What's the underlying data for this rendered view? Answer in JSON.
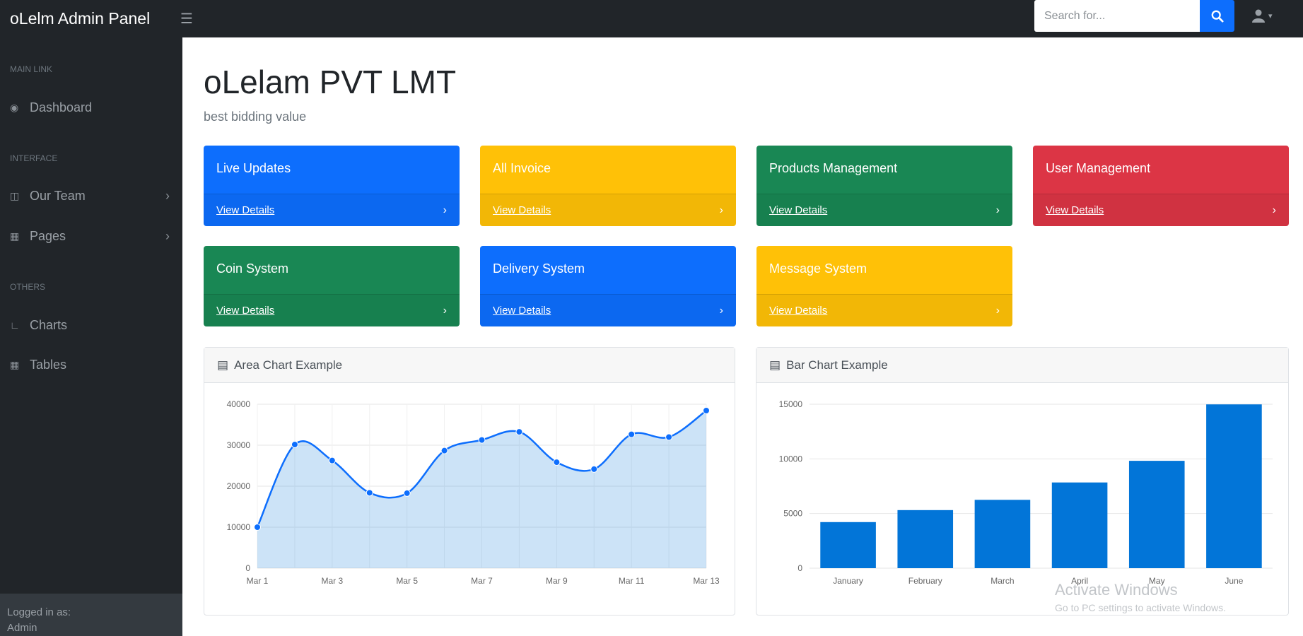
{
  "topbar": {
    "brand": "oLelm Admin Panel",
    "toggle_icon": "hamburger-icon",
    "search_placeholder": "Search for...",
    "search_icon": "search-icon",
    "user_icon": "user-icon"
  },
  "sidebar": {
    "sections": [
      {
        "heading": "MAIN LINK",
        "items": [
          {
            "label": "Dashboard",
            "icon": "dashboard-icon",
            "has_children": false
          }
        ]
      },
      {
        "heading": "INTERFACE",
        "items": [
          {
            "label": "Our Team",
            "icon": "columns-icon",
            "has_children": true
          },
          {
            "label": "Pages",
            "icon": "book-icon",
            "has_children": true
          }
        ]
      },
      {
        "heading": "OTHERS",
        "items": [
          {
            "label": "Charts",
            "icon": "chart-icon",
            "has_children": false
          },
          {
            "label": "Tables",
            "icon": "table-icon",
            "has_children": false
          }
        ]
      }
    ],
    "footer": {
      "label": "Logged in as:",
      "user": "Admin"
    }
  },
  "main": {
    "title": "oLelam PVT LMT",
    "subtitle": "best bidding value",
    "cards": [
      {
        "title": "Live Updates",
        "link": "View Details",
        "color": "#0d6efd"
      },
      {
        "title": "All Invoice",
        "link": "View Details",
        "color": "#ffc107"
      },
      {
        "title": "Products Management",
        "link": "View Details",
        "color": "#198754"
      },
      {
        "title": "User Management",
        "link": "View Details",
        "color": "#dc3545"
      },
      {
        "title": "Coin System",
        "link": "View Details",
        "color": "#198754"
      },
      {
        "title": "Delivery System",
        "link": "View Details",
        "color": "#0d6efd"
      },
      {
        "title": "Message System",
        "link": "View Details",
        "color": "#ffc107"
      }
    ]
  },
  "watermark": {
    "line1": "Activate Windows",
    "line2": "Go to PC settings to activate Windows."
  },
  "chart_data": [
    {
      "type": "area",
      "title": "Area Chart Example",
      "x": [
        "Mar 1",
        "Mar 2",
        "Mar 3",
        "Mar 4",
        "Mar 5",
        "Mar 6",
        "Mar 7",
        "Mar 8",
        "Mar 9",
        "Mar 10",
        "Mar 11",
        "Mar 12",
        "Mar 13"
      ],
      "x_tick_labels": [
        "Mar 1",
        "Mar 3",
        "Mar 5",
        "Mar 7",
        "Mar 9",
        "Mar 11",
        "Mar 13"
      ],
      "values": [
        10000,
        30162,
        26263,
        18394,
        18287,
        28682,
        31274,
        33259,
        25849,
        24159,
        32651,
        31984,
        38451
      ],
      "ylim": [
        0,
        40000
      ],
      "yticks": [
        0,
        10000,
        20000,
        30000,
        40000
      ],
      "color": "#0d6efd",
      "fill": "rgba(2,117,216,0.2)",
      "grid": true
    },
    {
      "type": "bar",
      "title": "Bar Chart Example",
      "categories": [
        "January",
        "February",
        "March",
        "April",
        "May",
        "June"
      ],
      "values": [
        4215,
        5312,
        6251,
        7841,
        9821,
        14984
      ],
      "ylim": [
        0,
        15000
      ],
      "yticks": [
        0,
        5000,
        10000,
        15000
      ],
      "color": "#0275d8",
      "grid": true
    }
  ]
}
